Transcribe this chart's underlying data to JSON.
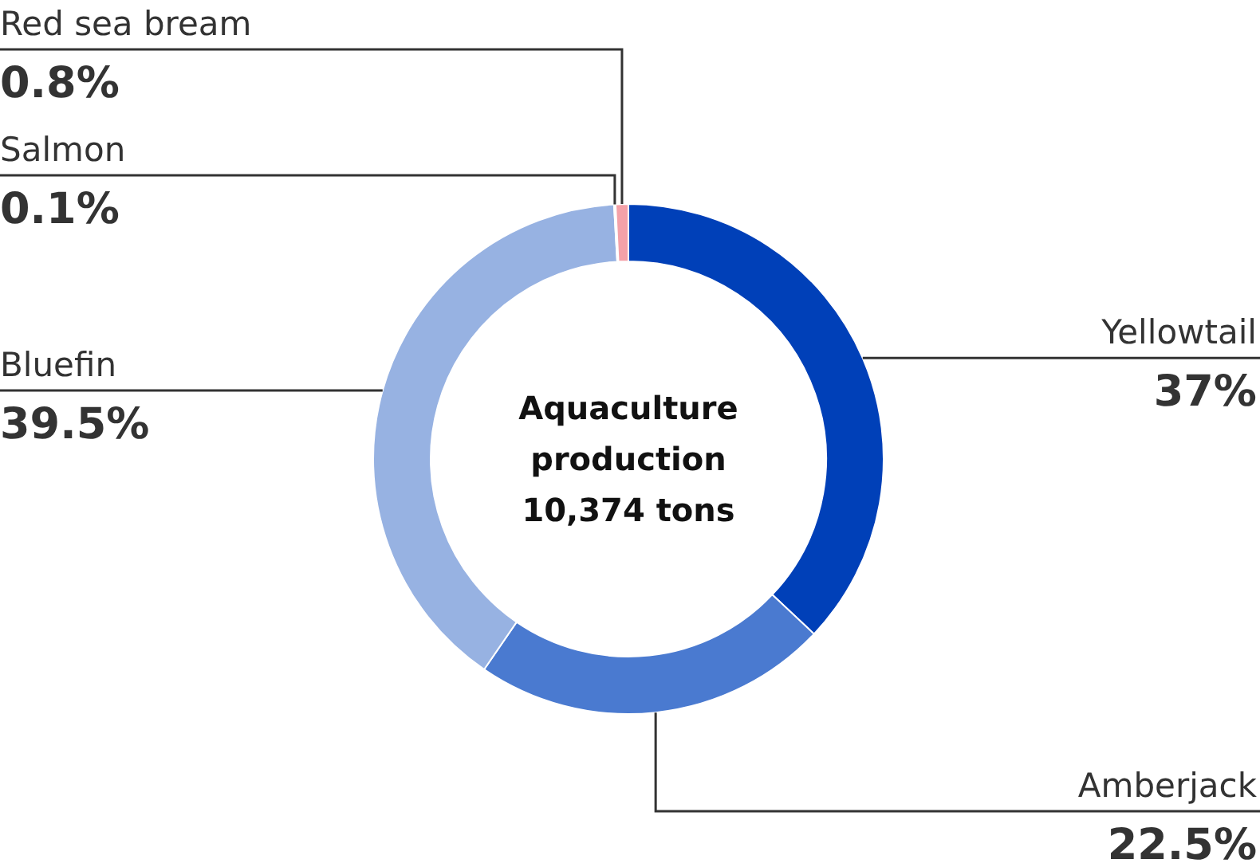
{
  "chart_data": {
    "type": "donut",
    "title": "Aquaculture production",
    "subtitle": "10,374 tons",
    "categories": [
      "Yellowtail",
      "Amberjack",
      "Bluefin",
      "Salmon",
      "Red sea bream"
    ],
    "values": [
      37,
      22.5,
      39.5,
      0.1,
      0.8
    ],
    "colors": [
      "#0040b8",
      "#4a7ad0",
      "#97b2e2",
      "#f9b9bf",
      "#f4a1a8"
    ],
    "value_labels": [
      "37%",
      "22.5%",
      "39.5%",
      "0.1%",
      "0.8%"
    ]
  }
}
